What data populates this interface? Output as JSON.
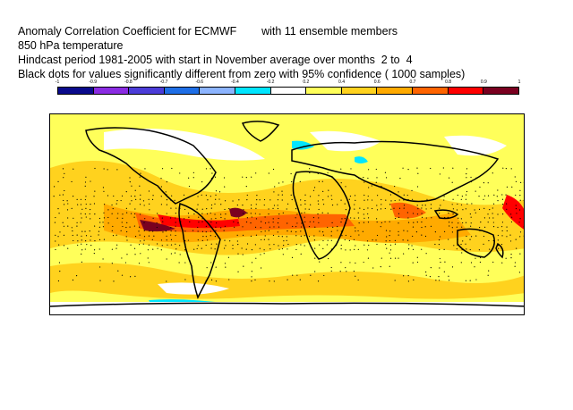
{
  "title": {
    "line1": "Anomaly Correlation Coefficient for ECMWF        with 11 ensemble members",
    "line2": "850 hPa temperature",
    "line3": "Hindcast period 1981-2005 with start in November average over months  2 to  4",
    "line4": "Black dots for values significantly different from zero with 95% confidence ( 1000 samples)"
  },
  "colorbar": {
    "tick_labels": [
      "-1",
      "-0.9",
      "-0.8",
      "-0.7",
      "-0.6",
      "-0.4",
      "-0.2",
      "0.2",
      "0.4",
      "0.6",
      "0.7",
      "0.8",
      "0.9",
      "1"
    ],
    "colors": [
      "#0a0a8c",
      "#8a2be2",
      "#4b3cd8",
      "#1e6ee6",
      "#8cb4ff",
      "#00e5ff",
      "#ffffff",
      "#ffff5a",
      "#ffd21e",
      "#ffaa00",
      "#ff6400",
      "#ff0000",
      "#7a0020"
    ]
  },
  "map": {
    "projection": "cylindrical equidistant",
    "variable": "850 hPa temperature anomaly correlation",
    "legend_placement": "top",
    "dominant_colors": [
      "#ffff5a",
      "#ffd21e",
      "#ffaa00",
      "#ff6400",
      "#ff0000",
      "#7a0020",
      "#00e5ff",
      "#ffffff"
    ]
  }
}
